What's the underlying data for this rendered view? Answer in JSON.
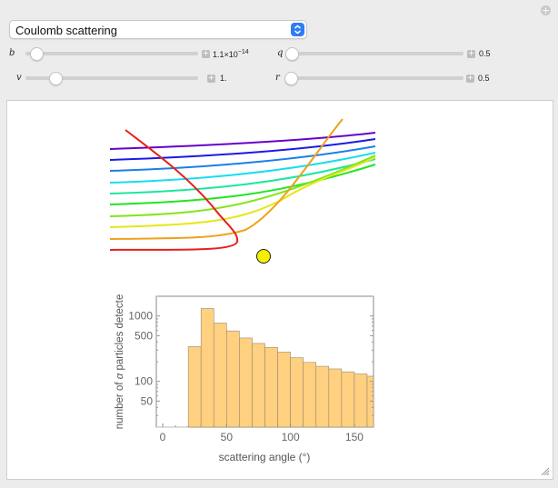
{
  "header": {
    "experiment_select": {
      "value": "Coulomb scattering"
    }
  },
  "controls": {
    "b": {
      "name": "b",
      "value_base": "1.1",
      "value_exp": "−14",
      "fraction": 0.0
    },
    "q": {
      "name": "q",
      "value": "0.5",
      "fraction": 0.0
    },
    "v": {
      "name": "v",
      "value": "1.",
      "fraction": 0.15
    },
    "r": {
      "name": "r",
      "value": "0.5",
      "fraction": 0.0
    }
  },
  "trajectories": {
    "colors": [
      "#6600cc",
      "#1a1ae6",
      "#1a7fe6",
      "#1adcf0",
      "#1ae6a0",
      "#1fe61f",
      "#80e61a",
      "#e6e61a",
      "#f0a01a",
      "#e6201a"
    ],
    "nucleus_color": "#f5f000"
  },
  "chart_data": {
    "type": "bar",
    "xlabel": "scattering angle (°)",
    "ylabel": "number of α particles detecte",
    "ylabel_alpha": "α",
    "ylabel_pre": "number of ",
    "ylabel_post": " particles detecte",
    "x_ticks": [
      "0",
      "50",
      "100",
      "150"
    ],
    "y_ticks": [
      "50",
      "100",
      "500",
      "1000"
    ],
    "y_scale": "log",
    "xlim": [
      -5,
      165
    ],
    "ylim": [
      20,
      2000
    ],
    "bin_width": 10,
    "bin_starts": [
      20,
      30,
      40,
      50,
      60,
      70,
      80,
      90,
      100,
      110,
      120,
      130,
      140,
      150,
      160
    ],
    "values": [
      340,
      1300,
      780,
      590,
      460,
      380,
      330,
      280,
      230,
      195,
      170,
      155,
      140,
      130,
      120
    ],
    "bar_color": "#ffd080"
  }
}
